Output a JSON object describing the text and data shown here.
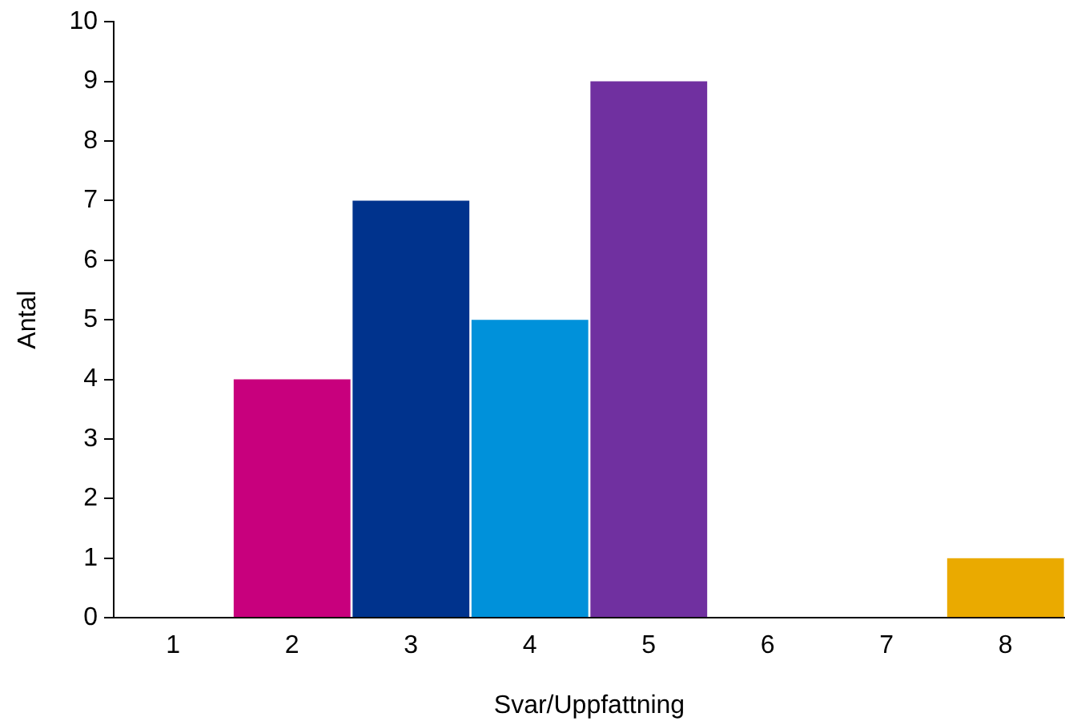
{
  "chart_data": {
    "type": "bar",
    "xlabel": "Svar/Uppfattning",
    "ylabel": "Antal",
    "categories": [
      "1",
      "2",
      "3",
      "4",
      "5",
      "6",
      "7",
      "8"
    ],
    "values": [
      0,
      4,
      7,
      5,
      9,
      0,
      0,
      1
    ],
    "colors": [
      "#00338d",
      "#c8007d",
      "#00338d",
      "#0091da",
      "#7030a0",
      "#00338d",
      "#00338d",
      "#eaaa00"
    ],
    "ylim": [
      0,
      10
    ],
    "yticks": [
      0,
      1,
      2,
      3,
      4,
      5,
      6,
      7,
      8,
      9,
      10
    ],
    "grid": false,
    "legend": false
  }
}
